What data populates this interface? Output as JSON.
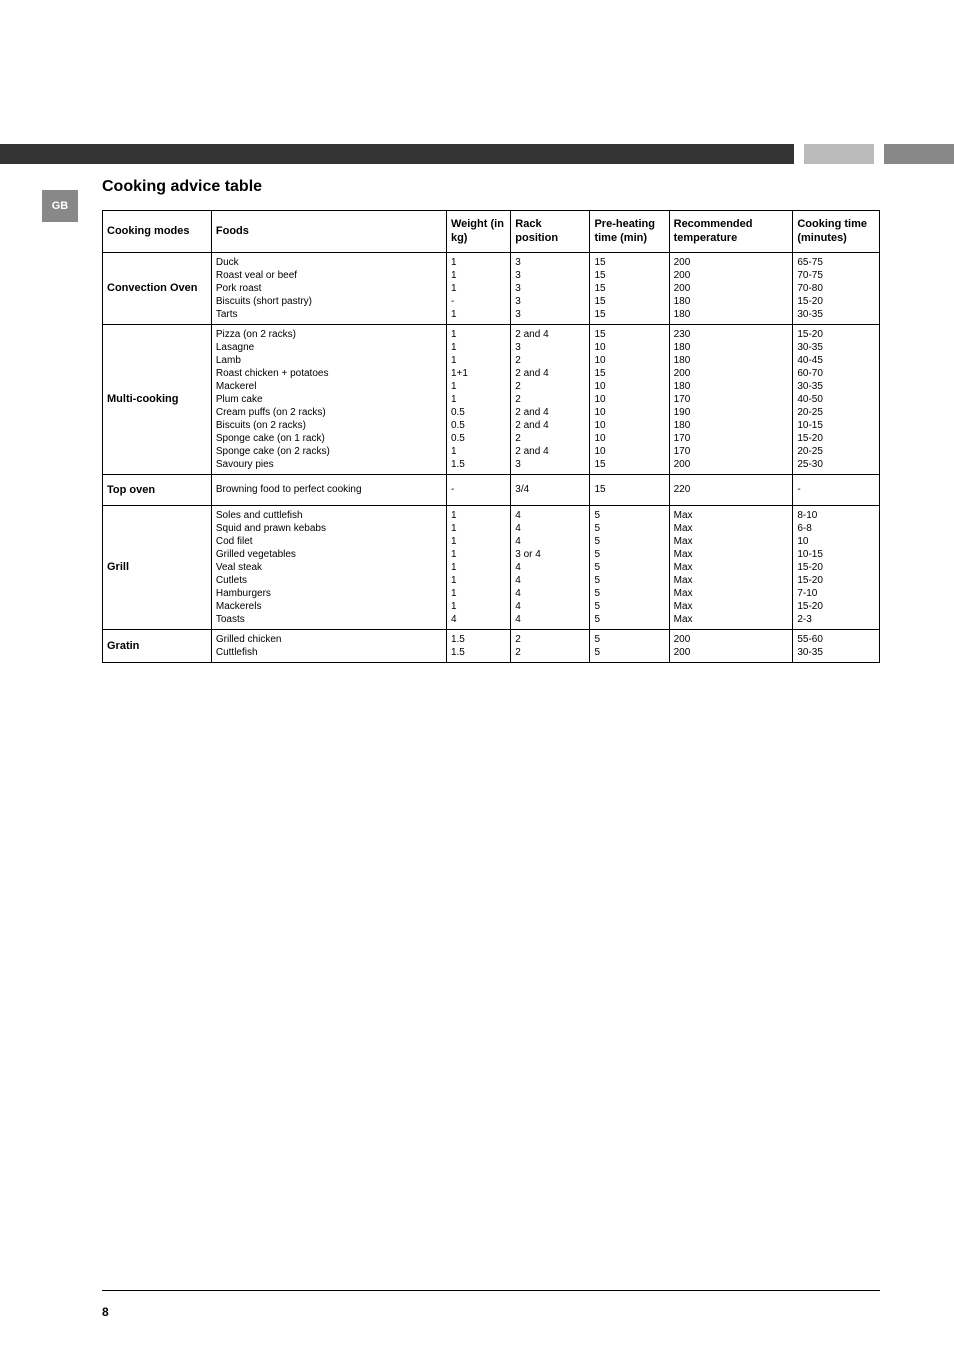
{
  "sidebar_badge": "GB",
  "title": "Cooking advice table",
  "page_number": "8",
  "columns": [
    "Cooking modes",
    "Foods",
    "Weight (in kg)",
    "Rack position",
    "Pre-heating time (min)",
    "Recommended temperature",
    "Cooking time (minutes)"
  ],
  "groups": [
    {
      "mode": "Convection Oven",
      "rows": [
        {
          "food": "Duck",
          "weight": "1",
          "rack": "3",
          "preheat": "15",
          "temp": "200",
          "time": "65-75"
        },
        {
          "food": "Roast veal or beef",
          "weight": "1",
          "rack": "3",
          "preheat": "15",
          "temp": "200",
          "time": "70-75"
        },
        {
          "food": "Pork roast",
          "weight": "1",
          "rack": "3",
          "preheat": "15",
          "temp": "200",
          "time": "70-80"
        },
        {
          "food": "Biscuits (short pastry)",
          "weight": "-",
          "rack": "3",
          "preheat": "15",
          "temp": "180",
          "time": "15-20"
        },
        {
          "food": "Tarts",
          "weight": "1",
          "rack": "3",
          "preheat": "15",
          "temp": "180",
          "time": "30-35"
        }
      ]
    },
    {
      "mode": "Multi-cooking",
      "rows": [
        {
          "food": "Pizza (on 2 racks)",
          "weight": "1",
          "rack": "2 and 4",
          "preheat": "15",
          "temp": "230",
          "time": "15-20"
        },
        {
          "food": "Lasagne",
          "weight": "1",
          "rack": "3",
          "preheat": "10",
          "temp": "180",
          "time": "30-35"
        },
        {
          "food": "Lamb",
          "weight": "1",
          "rack": "2",
          "preheat": "10",
          "temp": "180",
          "time": "40-45"
        },
        {
          "food": "Roast chicken + potatoes",
          "weight": "1+1",
          "rack": "2 and 4",
          "preheat": "15",
          "temp": "200",
          "time": "60-70"
        },
        {
          "food": "Mackerel",
          "weight": "1",
          "rack": "2",
          "preheat": "10",
          "temp": "180",
          "time": "30-35"
        },
        {
          "food": "Plum cake",
          "weight": "1",
          "rack": "2",
          "preheat": "10",
          "temp": "170",
          "time": "40-50"
        },
        {
          "food": "Cream puffs (on 2 racks)",
          "weight": "0.5",
          "rack": "2 and 4",
          "preheat": "10",
          "temp": "190",
          "time": "20-25"
        },
        {
          "food": "Biscuits (on 2 racks)",
          "weight": "0.5",
          "rack": "2 and 4",
          "preheat": "10",
          "temp": "180",
          "time": "10-15"
        },
        {
          "food": "Sponge cake (on 1 rack)",
          "weight": "0.5",
          "rack": "2",
          "preheat": "10",
          "temp": "170",
          "time": "15-20"
        },
        {
          "food": "Sponge cake (on 2 racks)",
          "weight": "1",
          "rack": "2 and 4",
          "preheat": "10",
          "temp": "170",
          "time": "20-25"
        },
        {
          "food": "Savoury pies",
          "weight": "1.5",
          "rack": "3",
          "preheat": "15",
          "temp": "200",
          "time": "25-30"
        }
      ]
    },
    {
      "mode": "Top oven",
      "rows": [
        {
          "food": "Browning food to perfect cooking",
          "weight": "-",
          "rack": "3/4",
          "preheat": "15",
          "temp": "220",
          "time": "-"
        }
      ]
    },
    {
      "mode": "Grill",
      "rows": [
        {
          "food": "Soles and cuttlefish",
          "weight": "1",
          "rack": "4",
          "preheat": "5",
          "temp": "Max",
          "time": "8-10"
        },
        {
          "food": "Squid and prawn kebabs",
          "weight": "1",
          "rack": "4",
          "preheat": "5",
          "temp": "Max",
          "time": "6-8"
        },
        {
          "food": "Cod filet",
          "weight": "1",
          "rack": "4",
          "preheat": "5",
          "temp": "Max",
          "time": "10"
        },
        {
          "food": "Grilled vegetables",
          "weight": "1",
          "rack": "3 or 4",
          "preheat": "5",
          "temp": "Max",
          "time": "10-15"
        },
        {
          "food": "Veal steak",
          "weight": "1",
          "rack": "4",
          "preheat": "5",
          "temp": "Max",
          "time": "15-20"
        },
        {
          "food": "Cutlets",
          "weight": "1",
          "rack": "4",
          "preheat": "5",
          "temp": "Max",
          "time": "15-20"
        },
        {
          "food": "Hamburgers",
          "weight": "1",
          "rack": "4",
          "preheat": "5",
          "temp": "Max",
          "time": "7-10"
        },
        {
          "food": "Mackerels",
          "weight": "1",
          "rack": "4",
          "preheat": "5",
          "temp": "Max",
          "time": "15-20"
        },
        {
          "food": "Toasts",
          "weight": "4",
          "rack": "4",
          "preheat": "5",
          "temp": "Max",
          "time": "2-3"
        }
      ]
    },
    {
      "mode": "Gratin",
      "rows": [
        {
          "food": "Grilled chicken",
          "weight": "1.5",
          "rack": "2",
          "preheat": "5",
          "temp": "200",
          "time": "55-60"
        },
        {
          "food": "Cuttlefish",
          "weight": "1.5",
          "rack": "2",
          "preheat": "5",
          "temp": "200",
          "time": "30-35"
        }
      ]
    }
  ]
}
